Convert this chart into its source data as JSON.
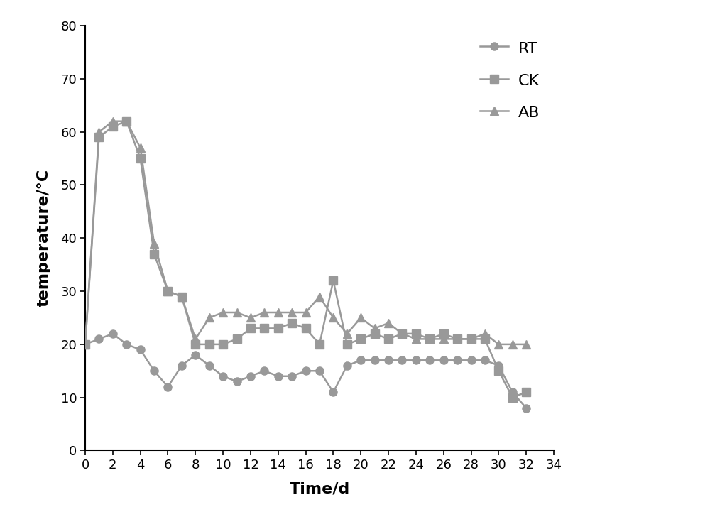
{
  "RT_x": [
    0,
    1,
    2,
    3,
    4,
    5,
    6,
    7,
    8,
    9,
    10,
    11,
    12,
    13,
    14,
    15,
    16,
    17,
    18,
    19,
    20,
    21,
    22,
    23,
    24,
    25,
    26,
    27,
    28,
    29,
    30,
    31,
    32
  ],
  "RT_y": [
    20,
    21,
    22,
    20,
    19,
    15,
    12,
    16,
    18,
    16,
    14,
    13,
    14,
    15,
    14,
    14,
    15,
    15,
    11,
    16,
    17,
    17,
    17,
    17,
    17,
    17,
    17,
    17,
    17,
    17,
    16,
    11,
    8
  ],
  "CK_x": [
    0,
    1,
    2,
    3,
    4,
    5,
    6,
    7,
    8,
    9,
    10,
    11,
    12,
    13,
    14,
    15,
    16,
    17,
    18,
    19,
    20,
    21,
    22,
    23,
    24,
    25,
    26,
    27,
    28,
    29,
    30,
    31,
    32
  ],
  "CK_y": [
    20,
    59,
    61,
    62,
    55,
    37,
    30,
    29,
    20,
    20,
    20,
    21,
    23,
    23,
    23,
    24,
    23,
    20,
    32,
    20,
    21,
    22,
    21,
    22,
    22,
    21,
    22,
    21,
    21,
    21,
    15,
    10,
    11
  ],
  "AB_x": [
    0,
    1,
    2,
    3,
    4,
    5,
    6,
    7,
    8,
    9,
    10,
    11,
    12,
    13,
    14,
    15,
    16,
    17,
    18,
    19,
    20,
    21,
    22,
    23,
    24,
    25,
    26,
    27,
    28,
    29,
    30,
    31,
    32
  ],
  "AB_y": [
    20,
    60,
    62,
    62,
    57,
    39,
    30,
    29,
    21,
    25,
    26,
    26,
    25,
    26,
    26,
    26,
    26,
    29,
    25,
    22,
    25,
    23,
    24,
    22,
    21,
    21,
    21,
    21,
    21,
    22,
    20,
    20,
    20
  ],
  "line_color": "#999999",
  "xlabel": "Time/d",
  "ylabel": "temperature/°C",
  "xlim": [
    0,
    34
  ],
  "ylim": [
    0,
    80
  ],
  "xticks": [
    0,
    2,
    4,
    6,
    8,
    10,
    12,
    14,
    16,
    18,
    20,
    22,
    24,
    26,
    28,
    30,
    32,
    34
  ],
  "yticks": [
    0,
    10,
    20,
    30,
    40,
    50,
    60,
    70,
    80
  ],
  "legend_labels": [
    "RT",
    "CK",
    "AB"
  ],
  "fig_width": 10.0,
  "fig_height": 7.21,
  "background_color": "#ffffff"
}
